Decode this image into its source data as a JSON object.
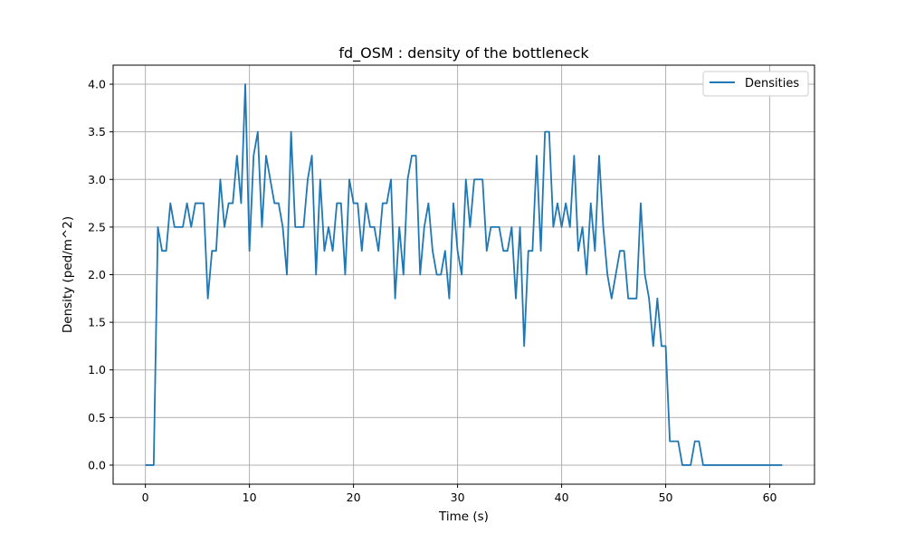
{
  "chart_data": {
    "type": "line",
    "title": "fd_OSM : density of the bottleneck",
    "xlabel": "Time (s)",
    "ylabel": "Density (ped/m^2)",
    "xlim": [
      -3.1,
      64.3
    ],
    "ylim": [
      -0.2,
      4.2
    ],
    "xticks": [
      0,
      10,
      20,
      30,
      40,
      50,
      60
    ],
    "yticks": [
      0.0,
      0.5,
      1.0,
      1.5,
      2.0,
      2.5,
      3.0,
      3.5,
      4.0
    ],
    "ytick_labels": [
      "0.0",
      "0.5",
      "1.0",
      "1.5",
      "2.0",
      "2.5",
      "3.0",
      "3.5",
      "4.0"
    ],
    "grid": true,
    "legend_position": "top-right",
    "series": [
      {
        "name": "Densities",
        "color": "#1f77b4",
        "x": [
          0.0,
          0.4,
          0.8,
          1.2,
          1.6,
          2.0,
          2.4,
          2.8,
          3.2,
          3.6,
          4.0,
          4.4,
          4.8,
          5.2,
          5.6,
          6.0,
          6.4,
          6.8,
          7.2,
          7.6,
          8.0,
          8.4,
          8.8,
          9.2,
          9.6,
          10.0,
          10.4,
          10.8,
          11.2,
          11.6,
          12.0,
          12.4,
          12.8,
          13.2,
          13.6,
          14.0,
          14.4,
          14.8,
          15.2,
          15.6,
          16.0,
          16.4,
          16.8,
          17.2,
          17.6,
          18.0,
          18.4,
          18.8,
          19.2,
          19.6,
          20.0,
          20.4,
          20.8,
          21.2,
          21.6,
          22.0,
          22.4,
          22.8,
          23.2,
          23.6,
          24.0,
          24.4,
          24.8,
          25.2,
          25.6,
          26.0,
          26.4,
          26.8,
          27.2,
          27.6,
          28.0,
          28.4,
          28.8,
          29.2,
          29.6,
          30.0,
          30.4,
          30.8,
          31.2,
          31.6,
          32.0,
          32.4,
          32.8,
          33.2,
          33.6,
          34.0,
          34.4,
          34.8,
          35.2,
          35.6,
          36.0,
          36.4,
          36.8,
          37.2,
          37.6,
          38.0,
          38.4,
          38.8,
          39.2,
          39.6,
          40.0,
          40.4,
          40.8,
          41.2,
          41.6,
          42.0,
          42.4,
          42.8,
          43.2,
          43.6,
          44.0,
          44.4,
          44.8,
          45.2,
          45.6,
          46.0,
          46.4,
          46.8,
          47.2,
          47.6,
          48.0,
          48.4,
          48.8,
          49.2,
          49.6,
          50.0,
          50.4,
          50.8,
          51.2,
          51.6,
          52.0,
          52.4,
          52.8,
          53.2,
          53.6,
          54.0,
          56.0,
          58.0,
          60.0,
          61.2
        ],
        "y": [
          0.0,
          0.0,
          0.0,
          2.5,
          2.25,
          2.25,
          2.75,
          2.5,
          2.5,
          2.5,
          2.75,
          2.5,
          2.75,
          2.75,
          2.75,
          1.75,
          2.25,
          2.25,
          3.0,
          2.5,
          2.75,
          2.75,
          3.25,
          2.75,
          4.0,
          2.25,
          3.25,
          3.5,
          2.5,
          3.25,
          3.0,
          2.75,
          2.75,
          2.5,
          2.0,
          3.5,
          2.5,
          2.5,
          2.5,
          3.0,
          3.25,
          2.0,
          3.0,
          2.25,
          2.5,
          2.25,
          2.75,
          2.75,
          2.0,
          3.0,
          2.75,
          2.75,
          2.25,
          2.75,
          2.5,
          2.5,
          2.25,
          2.75,
          2.75,
          3.0,
          1.75,
          2.5,
          2.0,
          3.0,
          3.25,
          3.25,
          2.0,
          2.5,
          2.75,
          2.25,
          2.0,
          2.0,
          2.25,
          1.75,
          2.75,
          2.25,
          2.0,
          3.0,
          2.5,
          3.0,
          3.0,
          3.0,
          2.25,
          2.5,
          2.5,
          2.5,
          2.25,
          2.25,
          2.5,
          1.75,
          2.5,
          1.25,
          2.25,
          2.25,
          3.25,
          2.25,
          3.5,
          3.5,
          2.5,
          2.75,
          2.5,
          2.75,
          2.5,
          3.25,
          2.25,
          2.5,
          2.0,
          2.75,
          2.25,
          3.25,
          2.5,
          2.0,
          1.75,
          2.0,
          2.25,
          2.25,
          1.75,
          1.75,
          1.75,
          2.75,
          2.0,
          1.75,
          1.25,
          1.75,
          1.25,
          1.25,
          0.25,
          0.25,
          0.25,
          0.0,
          0.0,
          0.0,
          0.25,
          0.25,
          0.0,
          0.0,
          0.0,
          0.0,
          0.0,
          0.0
        ]
      }
    ]
  }
}
